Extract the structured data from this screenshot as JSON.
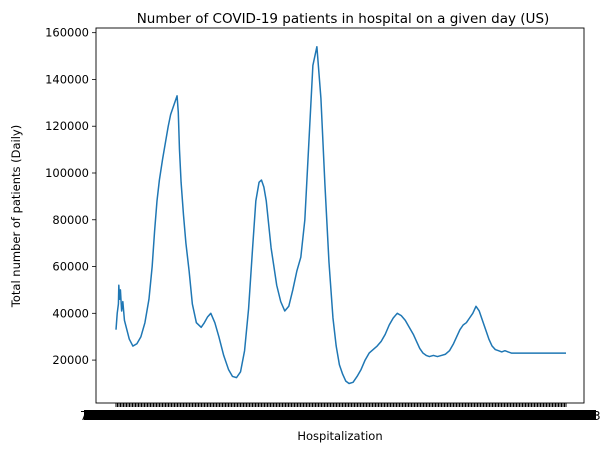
{
  "chart_data": {
    "type": "line",
    "title": "Number of COVID-19 patients in hospital on a given day (US)",
    "xlabel": "Hospitalization",
    "ylabel": "Total number of patients (Daily)",
    "ylim": [
      1650,
      162000
    ],
    "yticks": [
      20000,
      40000,
      60000,
      80000,
      100000,
      120000,
      140000,
      160000
    ],
    "ytick_labels": [
      "20000",
      "40000",
      "60000",
      "80000",
      "100000",
      "120000",
      "140000",
      "160000"
    ],
    "x_tick_labels_note": "dense overlapping date labels",
    "x_tick_label_first": "7",
    "x_tick_label_last": "3",
    "series": [
      {
        "color": "#1f77b4",
        "x": [
          0,
          3,
          6,
          7,
          9,
          11,
          14,
          17,
          21,
          27,
          33,
          42,
          52,
          62,
          72,
          82,
          90,
          96,
          102,
          108,
          116,
          124,
          130,
          136,
          142,
          148,
          152,
          155,
          158,
          162,
          168,
          174,
          182,
          190,
          200,
          212,
          220,
          228,
          236,
          246,
          256,
          268,
          280,
          290,
          300,
          310,
          320,
          330,
          340,
          348,
          356,
          362,
          368,
          374,
          380,
          386,
          393,
          400,
          410,
          420,
          430,
          440,
          450,
          460,
          470,
          480,
          490,
          500,
          510,
          520,
          530,
          540,
          548,
          556,
          564,
          572,
          580,
          590,
          600,
          610,
          620,
          630,
          640,
          650,
          660,
          670,
          680,
          690,
          700,
          710,
          720,
          730,
          740,
          748,
          756,
          764,
          772,
          780,
          790,
          800,
          810,
          820,
          830,
          840,
          848,
          856,
          864,
          872,
          880,
          888,
          896,
          904,
          912,
          920,
          928,
          936,
          944,
          952,
          960,
          968,
          976,
          984,
          992,
          1000,
          1008,
          1016,
          1024,
          1032,
          1040,
          1048,
          1056,
          1064,
          1072,
          1080,
          1088,
          1096,
          1104,
          1112,
          1120
        ],
        "y": [
          33000,
          40000,
          44000,
          52000,
          46000,
          50000,
          41000,
          45000,
          37000,
          33000,
          29000,
          26000,
          27000,
          30000,
          36000,
          46000,
          60000,
          75000,
          88000,
          97000,
          106000,
          114000,
          120000,
          125000,
          128000,
          131000,
          133000,
          126000,
          110000,
          96000,
          82000,
          70000,
          58000,
          44000,
          36000,
          34000,
          36000,
          38500,
          40000,
          36000,
          30000,
          22000,
          16000,
          13000,
          12500,
          15000,
          24000,
          42000,
          68000,
          88000,
          96000,
          97000,
          94000,
          88000,
          78000,
          68000,
          60000,
          52000,
          45000,
          41000,
          43000,
          50000,
          58000,
          64000,
          80000,
          113000,
          146000,
          154000,
          132000,
          95000,
          62000,
          38000,
          26000,
          18000,
          14000,
          11000,
          10000,
          10500,
          13000,
          16000,
          20000,
          23000,
          24500,
          26000,
          28000,
          31000,
          35000,
          38000,
          40000,
          39000,
          37000,
          34000,
          31000,
          28000,
          25000,
          23000,
          22000,
          21500,
          22000,
          21500,
          22000,
          22500,
          24000,
          27000,
          30000,
          33000,
          35000,
          36000,
          38000,
          40000,
          43000,
          41000,
          37000,
          33000,
          29000,
          26000,
          24500,
          24000,
          23500,
          24000,
          23500,
          23000,
          23000,
          23000,
          23000,
          23000,
          23000,
          23000,
          23000,
          23000,
          23000,
          23000,
          23000,
          23000,
          23000,
          23000,
          23000,
          23000,
          23000
        ]
      }
    ],
    "grid": false,
    "legend": "none"
  }
}
